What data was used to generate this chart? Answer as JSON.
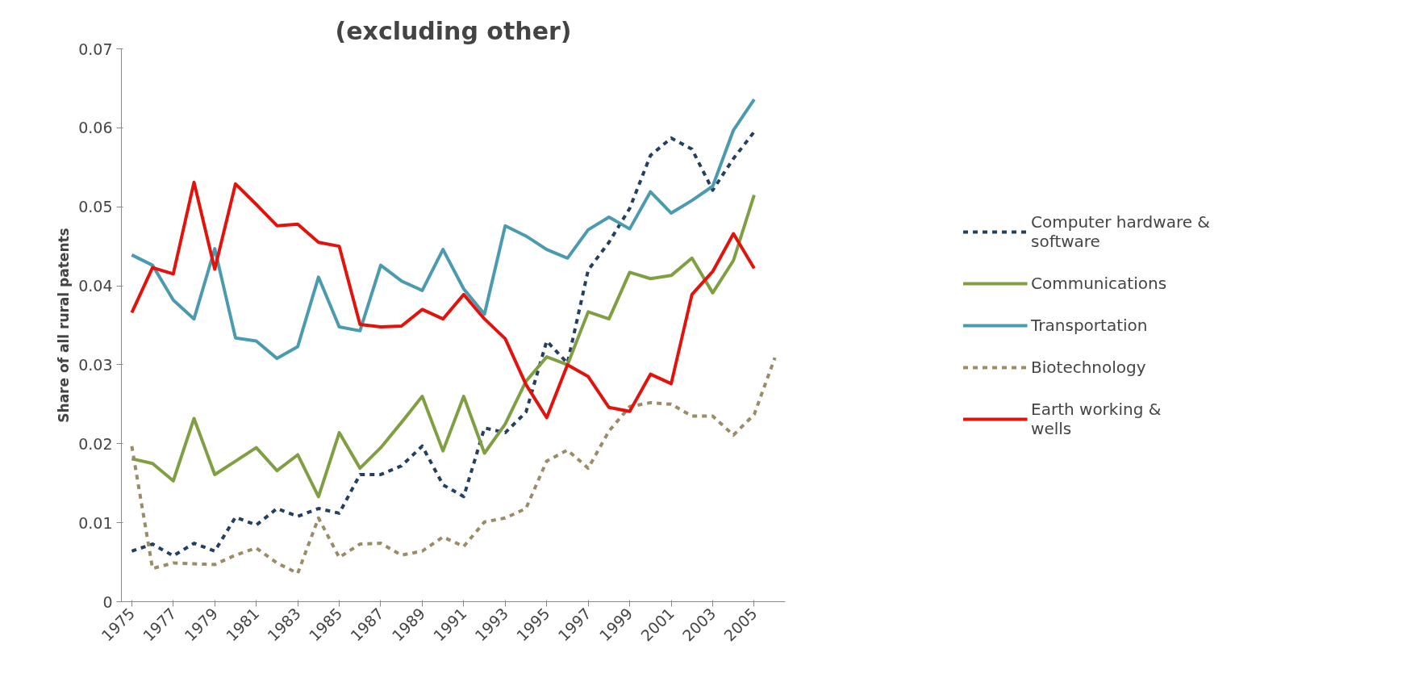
{
  "chart_data": {
    "type": "line",
    "title": "(excluding other)",
    "ylabel": "Share of all rural patents",
    "categories": [
      "1975",
      null,
      "1977",
      null,
      "1979",
      null,
      "1981",
      null,
      "1983",
      null,
      "1985",
      null,
      "1987",
      null,
      "1989",
      null,
      "1991",
      null,
      "1993",
      null,
      "1995",
      null,
      "1997",
      null,
      "1999",
      null,
      "2001",
      null,
      "2003",
      null,
      "2005",
      null
    ],
    "ylim": [
      0,
      0.07
    ],
    "yticks": [
      0,
      0.01,
      0.02,
      0.03,
      0.04,
      0.05,
      0.06,
      0.07
    ],
    "grid": false,
    "legend": "right",
    "marker": "none",
    "series": [
      {
        "name": "Computer hardware & software",
        "color": "#243f60",
        "line_style": "dashed",
        "values": [
          0.0064,
          0.0073,
          0.0058,
          0.0074,
          0.0064,
          0.0107,
          0.0097,
          0.0118,
          0.0108,
          0.0118,
          0.0112,
          0.0161,
          0.0161,
          0.0172,
          0.0197,
          0.0148,
          0.0133,
          0.022,
          0.0214,
          0.024,
          0.033,
          0.0302,
          0.042,
          0.0455,
          0.0498,
          0.0565,
          0.0587,
          0.0573,
          0.0521,
          0.0561,
          0.0595,
          null
        ]
      },
      {
        "name": "Communications",
        "color": "#7f9f42",
        "line_style": "solid",
        "values": [
          0.0181,
          0.0175,
          0.0153,
          0.0232,
          0.0161,
          0.0178,
          0.0195,
          0.0166,
          0.0186,
          0.0133,
          0.0214,
          0.0169,
          0.0195,
          0.0227,
          0.026,
          0.0191,
          0.026,
          0.0188,
          0.0225,
          0.0279,
          0.031,
          0.03,
          0.0367,
          0.0358,
          0.0417,
          0.0409,
          0.0413,
          0.0435,
          0.0391,
          0.0432,
          0.0515,
          null
        ]
      },
      {
        "name": "Transportation",
        "color": "#4a9bb0",
        "line_style": "solid",
        "values": [
          0.0439,
          0.0426,
          0.0382,
          0.0358,
          0.0447,
          0.0334,
          0.033,
          0.0308,
          0.0323,
          0.0411,
          0.0348,
          0.0343,
          0.0426,
          0.0406,
          0.0394,
          0.0446,
          0.0396,
          0.0364,
          0.0476,
          0.0463,
          0.0446,
          0.0435,
          0.0471,
          0.0487,
          0.0472,
          0.0519,
          0.0492,
          0.0508,
          0.0526,
          0.0597,
          0.0636,
          null
        ]
      },
      {
        "name": "Biotechnology",
        "color": "#9a8c66",
        "line_style": "dashed",
        "values": [
          0.0197,
          0.0042,
          0.0049,
          0.0048,
          0.0047,
          0.0059,
          0.0068,
          0.0049,
          0.0036,
          0.0106,
          0.0056,
          0.0073,
          0.0074,
          0.0059,
          0.0064,
          0.0082,
          0.007,
          0.0101,
          0.0106,
          0.0118,
          0.0178,
          0.0192,
          0.0169,
          0.0216,
          0.0247,
          0.0252,
          0.025,
          0.0235,
          0.0235,
          0.0211,
          0.0237,
          0.0309
        ]
      },
      {
        "name": "Earth working & wells",
        "color": "#e3120b",
        "line_style": "solid",
        "values": [
          0.0366,
          0.0423,
          0.0415,
          0.0531,
          0.0421,
          0.0529,
          0.0503,
          0.0476,
          0.0478,
          0.0455,
          0.045,
          0.0351,
          0.0348,
          0.0349,
          0.037,
          0.0358,
          0.0389,
          0.0358,
          0.0333,
          0.0275,
          0.0233,
          0.03,
          0.0285,
          0.0246,
          0.0241,
          0.0288,
          0.0276,
          0.0389,
          0.0418,
          0.0466,
          0.0422,
          null
        ]
      }
    ]
  }
}
